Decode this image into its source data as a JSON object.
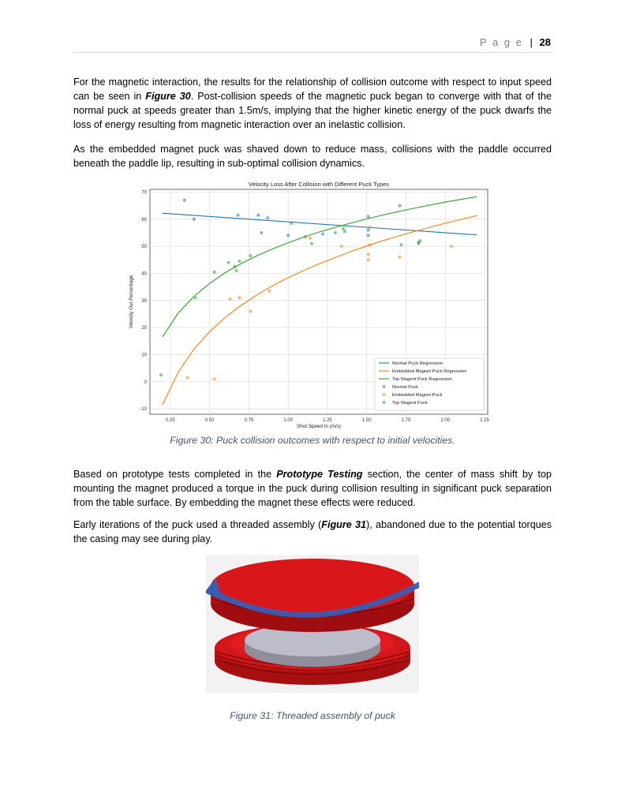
{
  "header": {
    "page_word": "P a g e",
    "separator": "|",
    "page_number": "28"
  },
  "paragraphs": {
    "p1_a": "For the magnetic interaction, the results for the relationship of collision outcome with respect to input speed can be seen in ",
    "p1_ref": "Figure 30",
    "p1_b": ". Post-collision speeds of the magnetic puck began to converge with that of the normal puck at speeds greater than 1.5m/s, implying that the higher kinetic energy of the puck dwarfs the loss of energy resulting from magnetic interaction over an inelastic collision.",
    "p2": "As the embedded magnet puck was shaved down to reduce mass, collisions with the paddle occurred beneath the paddle lip, resulting in sub-optimal collision dynamics.",
    "p3_a": "Based on prototype tests completed in the ",
    "p3_ref": "Prototype Testing",
    "p3_b": " section, the center of mass shift by top mounting the magnet produced a torque in the puck during collision resulting in significant puck separation from the table surface. By embedding the magnet these effects were reduced.",
    "p4_a": "Early iterations of the puck used a threaded assembly (",
    "p4_ref": "Figure 31",
    "p4_b": "), abandoned due to the potential torques the casing may see during play."
  },
  "captions": {
    "fig30": "Figure 30: Puck collision outcomes with respect to initial velocities.",
    "fig31": "Figure 31: Threaded assembly of puck"
  },
  "chart_data": {
    "type": "scatter",
    "title": "Velocity Loss After Collision with Different Puck Types",
    "xlabel": "Shot Speed In (m/s)",
    "ylabel": "Velocity Out Percentage",
    "xlim": [
      0.12,
      2.27
    ],
    "ylim": [
      -12,
      71
    ],
    "xticks": [
      0.25,
      0.5,
      0.75,
      1.0,
      1.25,
      1.5,
      1.75,
      2.0,
      2.25
    ],
    "xtick_labels": [
      "0.25",
      "0.50",
      "0.75",
      "1.00",
      "1.25",
      "1.50",
      "1.75",
      "2.00",
      "2.25"
    ],
    "yticks": [
      -10,
      0,
      10,
      20,
      30,
      40,
      50,
      60,
      70
    ],
    "grid": true,
    "legend_position": "lower-right",
    "colors": {
      "normal": "#1f77b4",
      "embedded": "#ff7f0e",
      "top": "#2ca02c"
    },
    "regression_lines": [
      {
        "name": "Normal Puck Regression",
        "color_key": "normal",
        "x": [
          0.2,
          2.2
        ],
        "y": [
          62.2,
          54.2
        ]
      },
      {
        "name": "Embedded Magnet Puck Regression",
        "color_key": "embedded",
        "x": [
          0.2,
          0.3,
          0.4,
          0.5,
          0.6,
          0.7,
          0.8,
          0.9,
          1.0,
          1.1,
          1.2,
          1.3,
          1.4,
          1.5,
          1.6,
          1.7,
          1.8,
          1.9,
          2.0,
          2.1,
          2.2
        ],
        "y": [
          -8.5,
          3.5,
          12,
          18.5,
          23.8,
          28.2,
          32,
          35.4,
          38.4,
          41.1,
          43.6,
          45.9,
          48.1,
          50.1,
          52,
          53.8,
          55.4,
          57,
          58.5,
          59.9,
          61.3
        ]
      },
      {
        "name": "Top Magent Puck Regression",
        "color_key": "top",
        "x": [
          0.2,
          0.3,
          0.4,
          0.5,
          0.6,
          0.7,
          0.8,
          0.9,
          1.0,
          1.1,
          1.2,
          1.3,
          1.4,
          1.5,
          1.6,
          1.7,
          1.8,
          1.9,
          2.0,
          2.1,
          2.2
        ],
        "y": [
          16.5,
          25.3,
          31.5,
          36.3,
          40.3,
          43.6,
          46.5,
          49,
          51.3,
          53.4,
          55.3,
          57,
          58.6,
          60.1,
          61.5,
          62.8,
          64,
          65.2,
          66.3,
          67.3,
          68.3
        ]
      }
    ],
    "series": [
      {
        "name": "Normal Puck",
        "color_key": "normal",
        "x": [
          0.34,
          0.4,
          0.68,
          0.81,
          0.83,
          0.87,
          1.0,
          1.22,
          1.51,
          1.51,
          1.51,
          1.71,
          1.83
        ],
        "y": [
          67,
          60,
          61.5,
          61.5,
          55,
          60.5,
          54,
          54.5,
          61,
          54,
          56,
          65,
          51.5
        ]
      },
      {
        "name": "Embedded Magnet Puck",
        "color_key": "embedded",
        "x": [
          0.36,
          0.53,
          0.63,
          0.69,
          0.76,
          0.88,
          1.14,
          1.34,
          1.51,
          1.51,
          1.52,
          1.52,
          1.71,
          2.04
        ],
        "y": [
          1.5,
          1,
          30.5,
          31,
          26,
          33.5,
          53,
          50,
          47,
          45,
          50.5,
          57,
          46,
          50
        ]
      },
      {
        "name": "Top Magent Puck",
        "color_key": "top",
        "x": [
          0.19,
          0.41,
          0.53,
          0.62,
          0.66,
          0.67,
          0.69,
          0.76,
          1.02,
          1.11,
          1.15,
          1.3,
          1.35,
          1.36,
          1.72,
          1.83,
          1.84
        ],
        "y": [
          2.5,
          31,
          40.5,
          44,
          42.5,
          41,
          44.5,
          46.5,
          58.5,
          53.5,
          51,
          55,
          56.5,
          55.5,
          50.5,
          51,
          52
        ]
      }
    ],
    "legend": [
      "Normal Puck Regression",
      "Embedded Magnet Puck Regression",
      "Top Magent Puck Regression",
      "Normal Puck",
      "Embedded Magnet Puck",
      "Top Magent Puck"
    ]
  }
}
